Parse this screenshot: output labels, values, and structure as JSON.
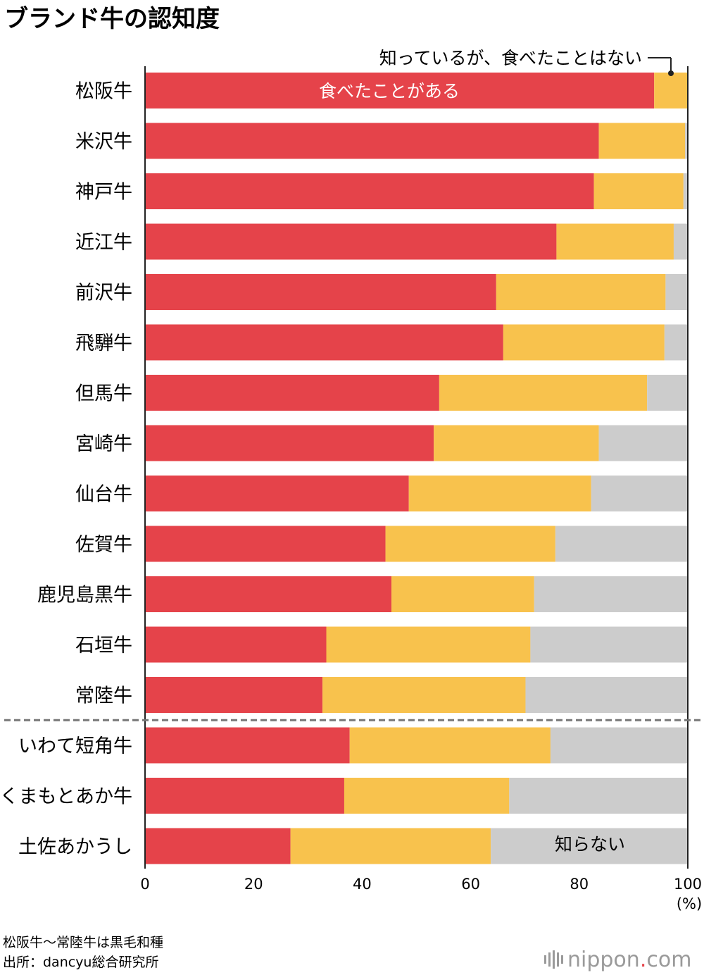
{
  "chart_data": {
    "type": "bar",
    "stacked": true,
    "orientation": "horizontal",
    "title": "ブランド牛の認知度",
    "unit": "(%)",
    "xlim": [
      0,
      100
    ],
    "xticks": [
      "0",
      "20",
      "40",
      "60",
      "80",
      "100"
    ],
    "categories": [
      "松阪牛",
      "米沢牛",
      "神戸牛",
      "近江牛",
      "前沢牛",
      "飛騨牛",
      "但馬牛",
      "宮崎牛",
      "仙台牛",
      "佐賀牛",
      "鹿児島黒牛",
      "石垣牛",
      "常陸牛",
      "いわて短角牛",
      "くまもとあか牛",
      "土佐あかうし"
    ],
    "group_divider_after_index": 12,
    "series": [
      {
        "name": "食べたことがある",
        "color": "#e5434a",
        "values": [
          93.8,
          83.6,
          82.7,
          75.8,
          64.7,
          66.0,
          54.2,
          53.2,
          48.6,
          44.3,
          45.4,
          33.4,
          32.7,
          37.7,
          36.7,
          26.8
        ]
      },
      {
        "name": "知っているが、食べたことはない",
        "color": "#f8c24d",
        "values": [
          6.2,
          15.9,
          16.5,
          21.6,
          31.2,
          29.7,
          38.3,
          30.4,
          33.6,
          31.3,
          26.3,
          37.6,
          37.4,
          37.0,
          30.4,
          36.9
        ]
      },
      {
        "name": "知らない",
        "color": "#cccccc",
        "values": [
          0.0,
          0.5,
          0.8,
          2.6,
          4.1,
          4.3,
          7.5,
          16.4,
          17.8,
          24.4,
          28.3,
          29.0,
          29.9,
          25.3,
          32.9,
          36.3
        ]
      }
    ],
    "annotations": {
      "eaten": "食べたことがある",
      "known_not_eaten": "知っているが、食べたことはない",
      "unknown": "知らない"
    }
  },
  "footer": {
    "note": "松阪牛〜常陸牛は黒毛和種",
    "source": "出所：dancyu総合研究所",
    "logo_main": "nippon",
    "logo_dot": ".",
    "logo_com": "com",
    "logo_bars_icon": "sound-bars-icon"
  },
  "colors": {
    "divider": "#777777",
    "axis": "#222222",
    "logo": "#9a9a9a",
    "logo_dot": "#e5434a"
  }
}
